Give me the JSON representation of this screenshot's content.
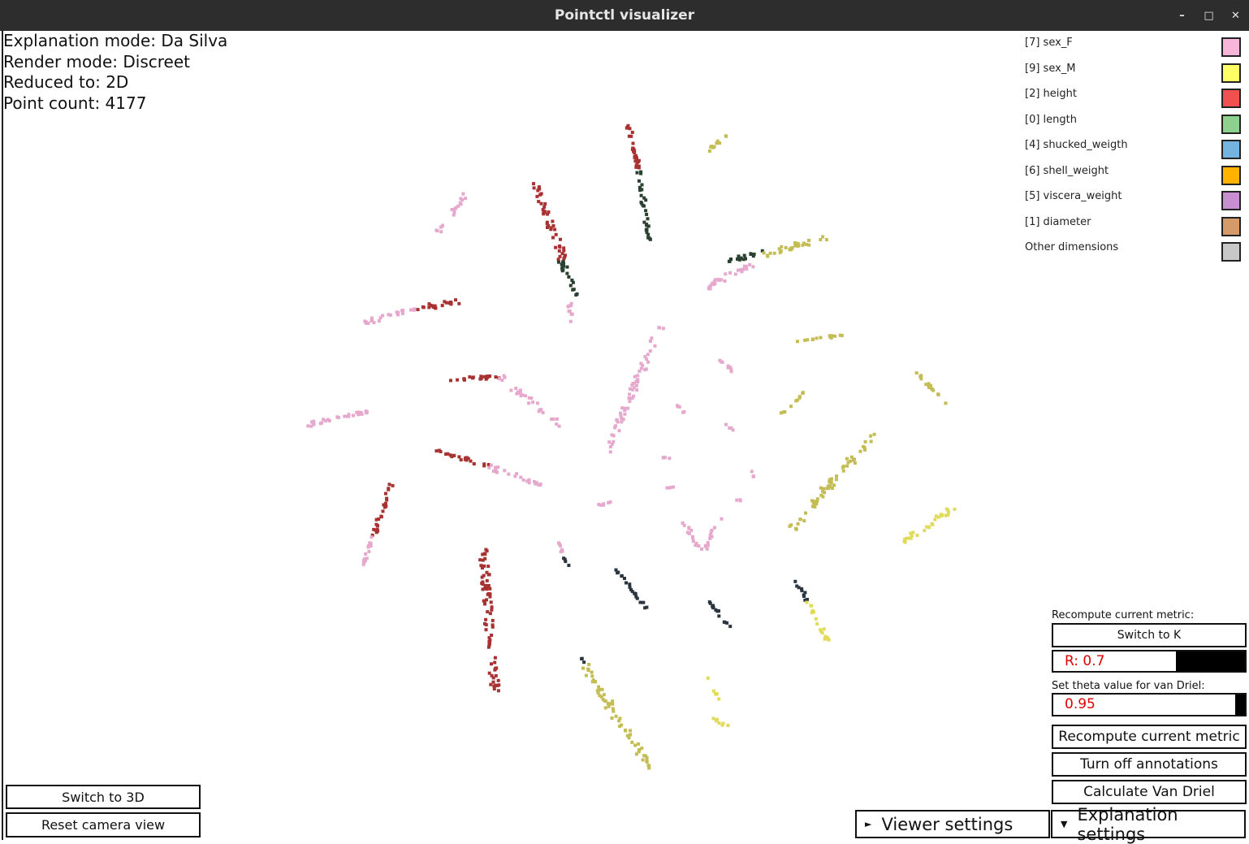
{
  "window": {
    "title": "Pointctl visualizer",
    "controls": {
      "minimize": "–",
      "maximize": "□",
      "close": "✕"
    }
  },
  "info": {
    "explanation_mode": "Explanation mode: Da Silva",
    "render_mode": "Render mode: Discreet",
    "reduced_to": "Reduced to: 2D",
    "point_count": "Point count: 4177"
  },
  "legend": [
    {
      "label": "[7] sex_F",
      "color": "#f7b6d9"
    },
    {
      "label": "[9] sex_M",
      "color": "#ffff66"
    },
    {
      "label": "[2] height",
      "color": "#f05050"
    },
    {
      "label": "[0] length",
      "color": "#8ed18e"
    },
    {
      "label": "[4] shucked_weigth",
      "color": "#74b3de"
    },
    {
      "label": "[6] shell_weight",
      "color": "#ffb300"
    },
    {
      "label": "[5] viscera_weight",
      "color": "#c98ed1"
    },
    {
      "label": "[1] diameter",
      "color": "#d49a6a"
    },
    {
      "label": "Other dimensions",
      "color": "#c8c8c8"
    }
  ],
  "panel": {
    "recompute_label": "Recompute current metric:",
    "switch_k": "Switch to K",
    "r_slider": {
      "value": "R: 0.7",
      "fraction": 0.64
    },
    "theta_label": "Set theta value for van Driel:",
    "theta_slider": {
      "value": "0.95",
      "fraction": 0.95
    },
    "recompute_button": "Recompute current metric",
    "annotations_button": "Turn off annotations",
    "van_driel_button": "Calculate Van Driel"
  },
  "left_buttons": {
    "switch_3d": "Switch to 3D",
    "reset_camera": "Reset camera view"
  },
  "expanders": {
    "viewer": {
      "label": "Viewer settings",
      "arrow": "►"
    },
    "explanation": {
      "label": "Explanation settings",
      "arrow": "▼"
    }
  },
  "plot_colors": {
    "crimson": "#a83232",
    "pink": "#e6a8cc",
    "olive": "#c4bd55",
    "dark_green": "#2a4030",
    "dark_slate": "#2b3540",
    "yellow": "#e0dc5a"
  }
}
